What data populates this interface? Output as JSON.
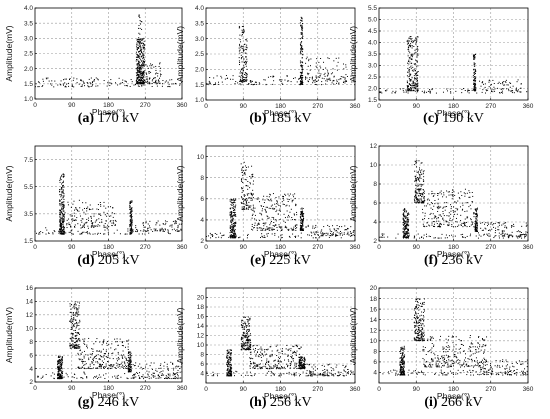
{
  "chart_data": [
    {
      "type": "scatter",
      "id": "a",
      "caption_letter": "(a)",
      "caption_text": " 170 kV",
      "xlabel": "Phase(°)",
      "ylabel": "Amplitude(mV)",
      "xlim": [
        0,
        360
      ],
      "ylim": [
        1.0,
        4.0
      ],
      "xticks": [
        0,
        90,
        180,
        270,
        360
      ],
      "yticks": [
        1.0,
        1.5,
        2.0,
        2.5,
        3.0,
        3.5,
        4.0
      ],
      "ytick_labels": [
        "1.0",
        "1.5",
        "2.0",
        "2.5",
        "3.0",
        "3.5",
        "4.0"
      ],
      "grid": true,
      "clusters": [
        {
          "name": "baseline",
          "x": [
            0,
            360
          ],
          "y": [
            1.4,
            1.7
          ],
          "n": 140
        },
        {
          "name": "main",
          "x": [
            248,
            268
          ],
          "y": [
            1.5,
            3.0
          ],
          "n": 320
        },
        {
          "name": "peak",
          "x": [
            253,
            262
          ],
          "y": [
            2.9,
            3.8
          ],
          "n": 20
        },
        {
          "name": "tail",
          "x": [
            268,
            310
          ],
          "y": [
            1.5,
            2.2
          ],
          "n": 60
        }
      ]
    },
    {
      "type": "scatter",
      "id": "b",
      "caption_letter": "(b)",
      "caption_text": " 185 kV",
      "xlabel": "Phase(°)",
      "ylabel": "Amplitude(mV)",
      "xlim": [
        0,
        360
      ],
      "ylim": [
        1.0,
        4.0
      ],
      "xticks": [
        0,
        90,
        180,
        270,
        360
      ],
      "yticks": [
        1.0,
        1.5,
        2.0,
        2.5,
        3.0,
        3.5,
        4.0
      ],
      "ytick_labels": [
        "1.0",
        "1.5",
        "2.0",
        "2.5",
        "3.0",
        "3.5",
        "4.0"
      ],
      "grid": true,
      "clusters": [
        {
          "name": "baseline",
          "x": [
            0,
            360
          ],
          "y": [
            1.5,
            1.8
          ],
          "n": 120
        },
        {
          "name": "cluster-90",
          "x": [
            80,
            100
          ],
          "y": [
            1.6,
            3.4
          ],
          "n": 130
        },
        {
          "name": "line-230",
          "x": [
            228,
            234
          ],
          "y": [
            1.5,
            3.7
          ],
          "n": 140
        },
        {
          "name": "spread-280",
          "x": [
            240,
            340
          ],
          "y": [
            1.6,
            2.4
          ],
          "n": 90
        }
      ]
    },
    {
      "type": "scatter",
      "id": "c",
      "caption_letter": "(c)",
      "caption_text": " 190 kV",
      "xlabel": "Phase(°)",
      "ylabel": "Amplitude(mV)",
      "xlim": [
        0,
        360
      ],
      "ylim": [
        1.5,
        5.5
      ],
      "xticks": [
        0,
        90,
        180,
        270,
        360
      ],
      "yticks": [
        1.5,
        2.0,
        2.5,
        3.0,
        3.5,
        4.0,
        4.5,
        5.0,
        5.5
      ],
      "ytick_labels": [
        "1.5",
        "2.0",
        "2.5",
        "3.0",
        "3.5",
        "4.0",
        "4.5",
        "5.0",
        "5.5"
      ],
      "grid": true,
      "clusters": [
        {
          "name": "baseline",
          "x": [
            0,
            360
          ],
          "y": [
            1.8,
            2.0
          ],
          "n": 80
        },
        {
          "name": "cluster-80",
          "x": [
            68,
            95
          ],
          "y": [
            1.9,
            4.3
          ],
          "n": 220
        },
        {
          "name": "line-230",
          "x": [
            228,
            234
          ],
          "y": [
            1.9,
            3.5
          ],
          "n": 90
        },
        {
          "name": "spread-270",
          "x": [
            240,
            345
          ],
          "y": [
            1.9,
            2.4
          ],
          "n": 60
        }
      ]
    },
    {
      "type": "scatter",
      "id": "d",
      "caption_letter": "(d)",
      "caption_text": " 205 kV",
      "xlabel": "Phase(°)",
      "ylabel": "Amplitude(mV)",
      "xlim": [
        0,
        360
      ],
      "ylim": [
        1.5,
        8.5
      ],
      "xticks": [
        0,
        90,
        180,
        270,
        360
      ],
      "yticks": [
        1.5,
        3.5,
        5.5,
        7.5
      ],
      "ytick_labels": [
        "1.5",
        "3.5",
        "5.5",
        "7.5"
      ],
      "grid": true,
      "clusters": [
        {
          "name": "baseline",
          "x": [
            0,
            360
          ],
          "y": [
            2.0,
            2.5
          ],
          "n": 90
        },
        {
          "name": "cluster-65",
          "x": [
            60,
            72
          ],
          "y": [
            2.0,
            6.5
          ],
          "n": 230
        },
        {
          "name": "decay",
          "x": [
            70,
            200
          ],
          "y": [
            2.5,
            4.5
          ],
          "n": 160
        },
        {
          "name": "line-235",
          "x": [
            232,
            238
          ],
          "y": [
            2.0,
            4.5
          ],
          "n": 110
        },
        {
          "name": "spread-280",
          "x": [
            240,
            360
          ],
          "y": [
            2.2,
            3.0
          ],
          "n": 80
        }
      ]
    },
    {
      "type": "scatter",
      "id": "e",
      "caption_letter": "(e)",
      "caption_text": " 225 kV",
      "xlabel": "Phase(°)",
      "ylabel": "Amplitude(mV)",
      "xlim": [
        0,
        360
      ],
      "ylim": [
        2,
        11
      ],
      "xticks": [
        0,
        90,
        180,
        270,
        360
      ],
      "yticks": [
        2,
        4,
        6,
        8,
        10
      ],
      "ytick_labels": [
        "2",
        "4",
        "6",
        "8",
        "10"
      ],
      "grid": true,
      "clusters": [
        {
          "name": "baseline",
          "x": [
            0,
            360
          ],
          "y": [
            2.3,
            2.8
          ],
          "n": 80
        },
        {
          "name": "cluster-65",
          "x": [
            58,
            72
          ],
          "y": [
            2.3,
            6.0
          ],
          "n": 180
        },
        {
          "name": "peak-95",
          "x": [
            85,
            115
          ],
          "y": [
            5.0,
            9.5
          ],
          "n": 120
        },
        {
          "name": "decay",
          "x": [
            110,
            220
          ],
          "y": [
            3.0,
            6.5
          ],
          "n": 220
        },
        {
          "name": "line-230",
          "x": [
            228,
            236
          ],
          "y": [
            3.0,
            5.2
          ],
          "n": 100
        },
        {
          "name": "spread-300",
          "x": [
            240,
            360
          ],
          "y": [
            2.5,
            3.5
          ],
          "n": 90
        }
      ]
    },
    {
      "type": "scatter",
      "id": "f",
      "caption_letter": "(f)",
      "caption_text": " 236 kV",
      "xlabel": "Phase(°)",
      "ylabel": "Amplitude(mV)",
      "xlim": [
        0,
        360
      ],
      "ylim": [
        2,
        12
      ],
      "xticks": [
        0,
        90,
        180,
        270,
        360
      ],
      "yticks": [
        2,
        4,
        6,
        8,
        10,
        12
      ],
      "ytick_labels": [
        "2",
        "4",
        "6",
        "8",
        "10",
        "12"
      ],
      "grid": true,
      "clusters": [
        {
          "name": "baseline",
          "x": [
            0,
            360
          ],
          "y": [
            2.3,
            2.8
          ],
          "n": 80
        },
        {
          "name": "cluster-65",
          "x": [
            58,
            72
          ],
          "y": [
            2.3,
            5.5
          ],
          "n": 160
        },
        {
          "name": "peak-95",
          "x": [
            85,
            110
          ],
          "y": [
            6.0,
            10.5
          ],
          "n": 150
        },
        {
          "name": "decay",
          "x": [
            105,
            230
          ],
          "y": [
            3.5,
            7.5
          ],
          "n": 240
        },
        {
          "name": "line-235",
          "x": [
            232,
            238
          ],
          "y": [
            3.0,
            5.5
          ],
          "n": 90
        },
        {
          "name": "spread-300",
          "x": [
            240,
            360
          ],
          "y": [
            2.5,
            4.0
          ],
          "n": 100
        }
      ]
    },
    {
      "type": "scatter",
      "id": "g",
      "caption_letter": "(g)",
      "caption_text": " 246 kV",
      "xlabel": "Phase(°)",
      "ylabel": "Amplitude(mV)",
      "xlim": [
        0,
        360
      ],
      "ylim": [
        2,
        16
      ],
      "xticks": [
        0,
        90,
        180,
        270,
        360
      ],
      "yticks": [
        2,
        4,
        6,
        8,
        10,
        12,
        14,
        16
      ],
      "ytick_labels": [
        "2",
        "4",
        "6",
        "8",
        "10",
        "12",
        "14",
        "16"
      ],
      "grid": true,
      "clusters": [
        {
          "name": "baseline",
          "x": [
            0,
            360
          ],
          "y": [
            2.5,
            3.5
          ],
          "n": 80
        },
        {
          "name": "cluster-60",
          "x": [
            55,
            68
          ],
          "y": [
            2.5,
            6.0
          ],
          "n": 150
        },
        {
          "name": "peak-95",
          "x": [
            85,
            110
          ],
          "y": [
            7.0,
            14.0
          ],
          "n": 170
        },
        {
          "name": "decay",
          "x": [
            105,
            230
          ],
          "y": [
            4.0,
            8.5
          ],
          "n": 240
        },
        {
          "name": "line-230",
          "x": [
            228,
            236
          ],
          "y": [
            3.5,
            6.5
          ],
          "n": 90
        },
        {
          "name": "spread-300",
          "x": [
            240,
            360
          ],
          "y": [
            2.5,
            5.0
          ],
          "n": 110
        }
      ]
    },
    {
      "type": "scatter",
      "id": "h",
      "caption_letter": "(h)",
      "caption_text": " 256 kV",
      "xlabel": "Phase(°)",
      "ylabel": "Amplitude(mV)",
      "xlim": [
        0,
        360
      ],
      "ylim": [
        2,
        22
      ],
      "xticks": [
        0,
        90,
        180,
        270,
        360
      ],
      "yticks": [
        4,
        6,
        8,
        10,
        12,
        14,
        16,
        18,
        20
      ],
      "ytick_labels": [
        "4",
        "6",
        "8",
        "10",
        "12",
        "14",
        "16",
        "18",
        "20"
      ],
      "grid": true,
      "clusters": [
        {
          "name": "baseline",
          "x": [
            0,
            360
          ],
          "y": [
            3.5,
            4.5
          ],
          "n": 80
        },
        {
          "name": "cluster-55",
          "x": [
            50,
            62
          ],
          "y": [
            3.5,
            9.0
          ],
          "n": 150
        },
        {
          "name": "peak-95",
          "x": [
            85,
            108
          ],
          "y": [
            9.0,
            16.0
          ],
          "n": 170
        },
        {
          "name": "decay",
          "x": [
            105,
            230
          ],
          "y": [
            5.0,
            10.0
          ],
          "n": 230
        },
        {
          "name": "line-230",
          "x": [
            225,
            240
          ],
          "y": [
            5.0,
            7.5
          ],
          "n": 120
        },
        {
          "name": "spread-300",
          "x": [
            240,
            360
          ],
          "y": [
            3.5,
            6.0
          ],
          "n": 90
        }
      ]
    },
    {
      "type": "scatter",
      "id": "i",
      "caption_letter": "(i)",
      "caption_text": " 266 kV",
      "xlabel": "Phase(°)",
      "ylabel": "Amplitude(mV)",
      "xlim": [
        0,
        360
      ],
      "ylim": [
        2,
        20
      ],
      "xticks": [
        0,
        90,
        180,
        270,
        360
      ],
      "yticks": [
        4,
        6,
        8,
        10,
        12,
        14,
        16,
        18,
        20
      ],
      "ytick_labels": [
        "4",
        "6",
        "8",
        "10",
        "12",
        "14",
        "16",
        "18",
        "20"
      ],
      "grid": true,
      "clusters": [
        {
          "name": "baseline",
          "x": [
            0,
            360
          ],
          "y": [
            3.5,
            4.5
          ],
          "n": 80
        },
        {
          "name": "cluster-55",
          "x": [
            50,
            62
          ],
          "y": [
            3.5,
            9.0
          ],
          "n": 150
        },
        {
          "name": "peak-95",
          "x": [
            85,
            110
          ],
          "y": [
            10.0,
            18.0
          ],
          "n": 180
        },
        {
          "name": "decay",
          "x": [
            105,
            260
          ],
          "y": [
            5.0,
            11.0
          ],
          "n": 260
        },
        {
          "name": "spread-300",
          "x": [
            240,
            360
          ],
          "y": [
            3.5,
            6.5
          ],
          "n": 110
        }
      ]
    }
  ]
}
